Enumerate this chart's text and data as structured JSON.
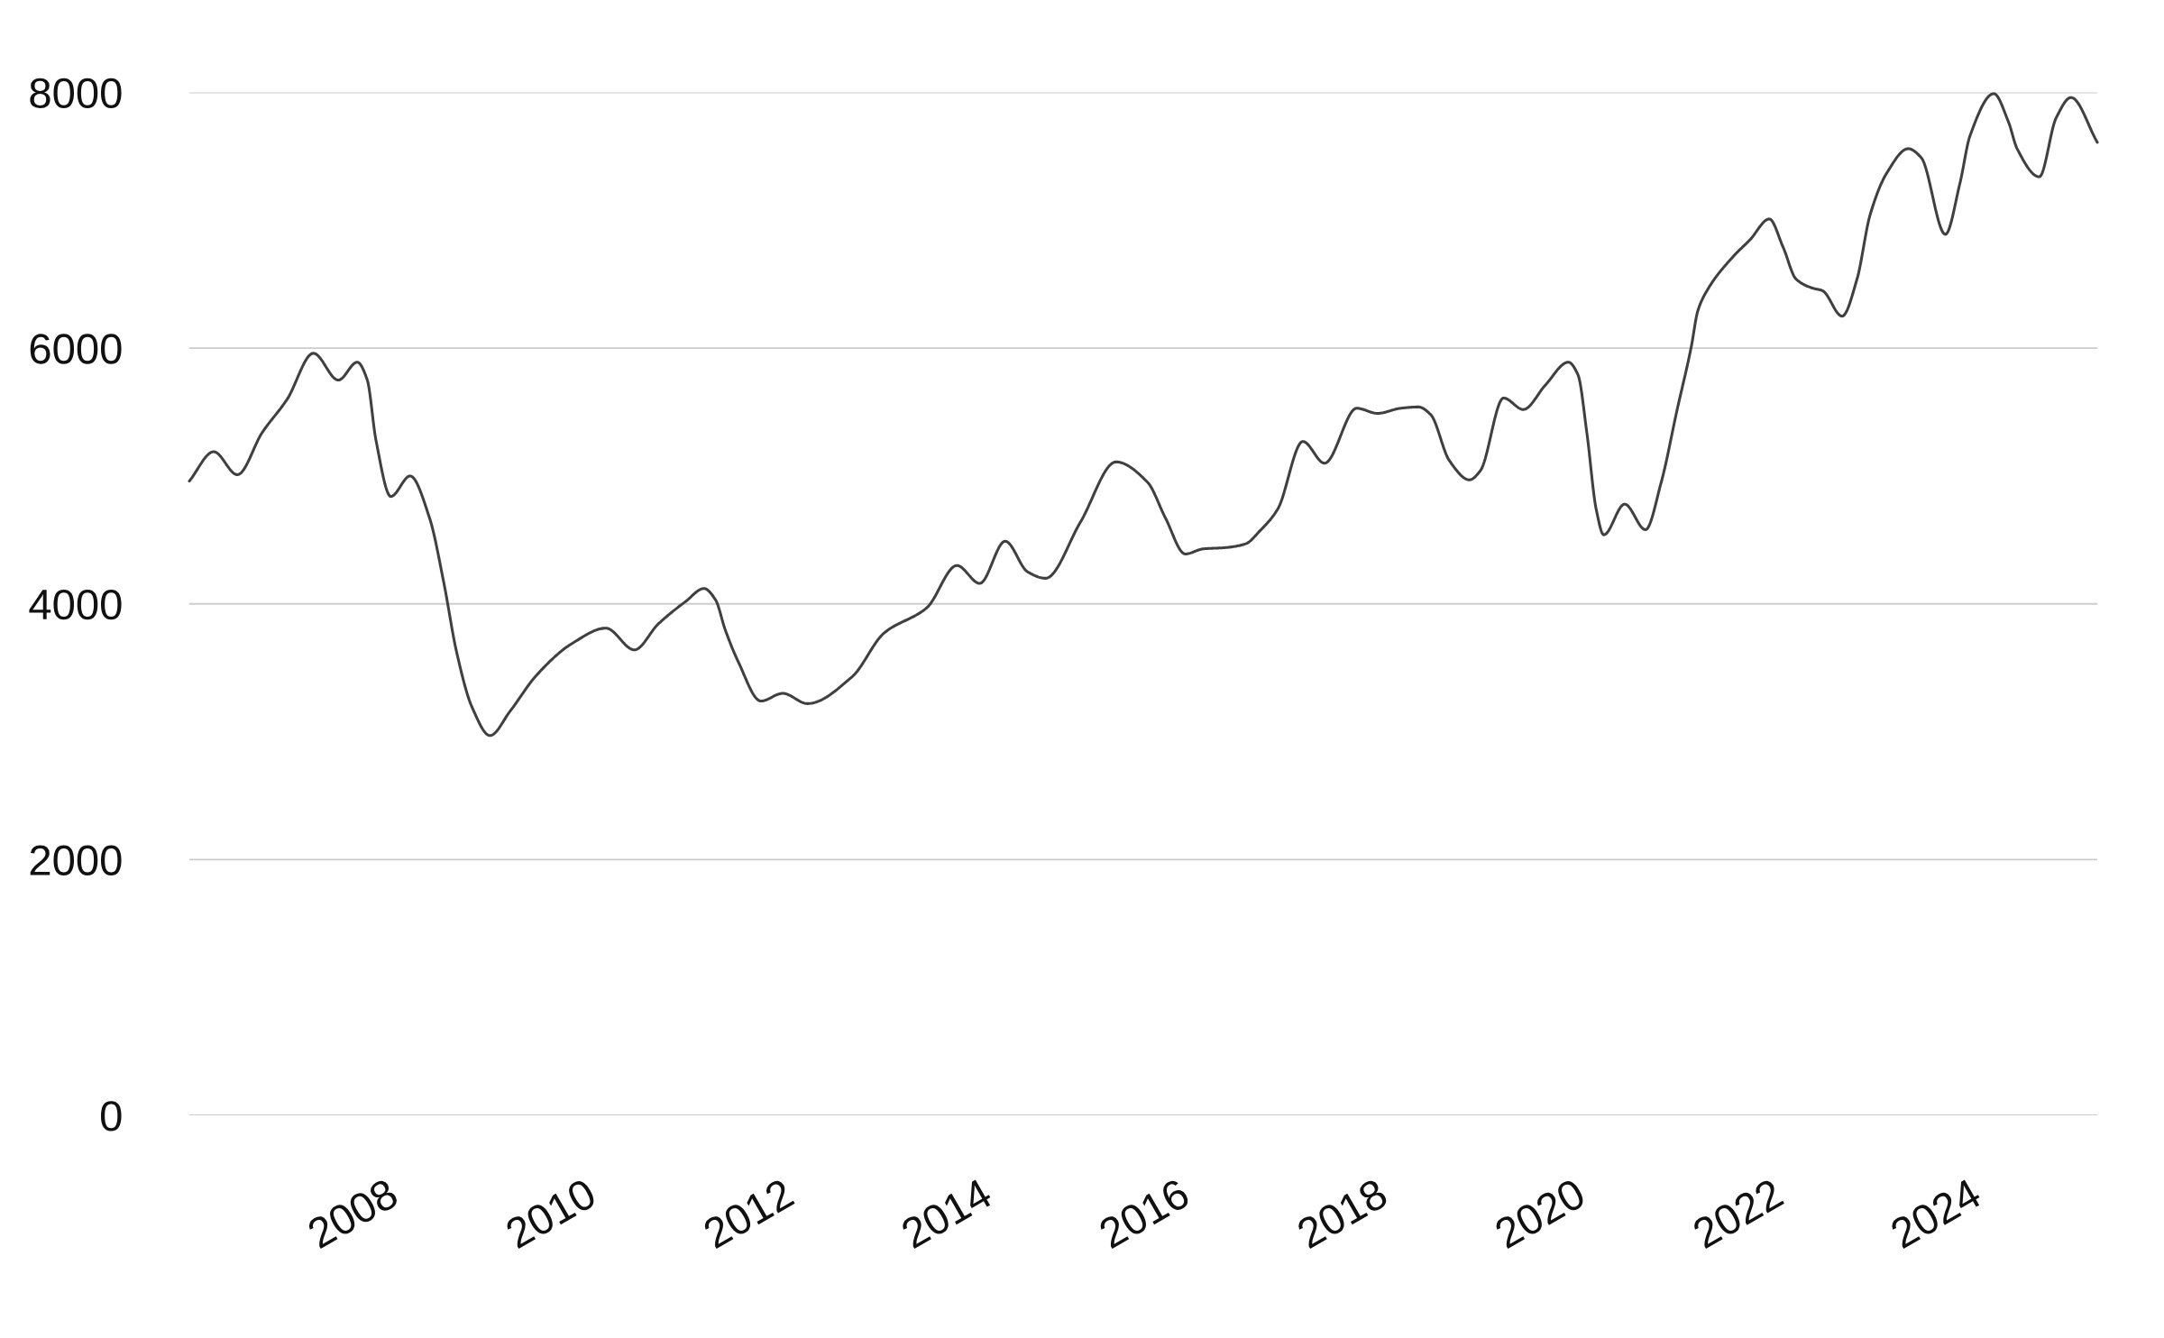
{
  "chart_data": {
    "type": "line",
    "x": [
      "2005-12-01",
      "2006-03-01",
      "2006-05-27",
      "2006-08-27",
      "2006-11-27",
      "2007-03-04",
      "2007-06-04",
      "2007-08-13",
      "2007-09-19",
      "2007-10-21",
      "2007-12-15",
      "2008-02-24",
      "2008-05-06",
      "2008-06-28",
      "2008-08-13",
      "2008-10-10",
      "2008-12-15",
      "2009-02-27",
      "2009-06-04",
      "2009-10-14",
      "2010-02-16",
      "2010-06-01",
      "2010-08-27",
      "2010-12-08",
      "2011-02-13",
      "2011-03-28",
      "2011-05-02",
      "2011-06-19",
      "2011-09-11",
      "2011-12-01",
      "2012-03-01",
      "2012-08-13",
      "2012-12-08",
      "2013-05-16",
      "2013-09-04",
      "2013-11-27",
      "2014-03-01",
      "2014-05-23",
      "2014-07-28",
      "2014-12-04",
      "2015-04-14",
      "2015-08-09",
      "2015-10-14",
      "2015-12-26",
      "2016-03-01",
      "2016-05-23",
      "2016-08-05",
      "2016-09-26",
      "2016-12-01",
      "2017-03-04",
      "2017-05-23",
      "2017-09-19",
      "2017-12-04",
      "2018-03-01",
      "2018-05-05",
      "2018-06-19",
      "2018-08-27",
      "2018-11-09",
      "2018-12-19",
      "2019-03-15",
      "2019-05-27",
      "2019-08-16",
      "2019-11-09",
      "2019-12-15",
      "2020-01-17",
      "2020-02-20",
      "2020-03-19",
      "2020-06-04",
      "2020-08-20",
      "2020-10-17",
      "2020-12-15",
      "2021-02-05",
      "2021-03-01",
      "2021-04-07",
      "2021-07-07",
      "2021-09-11",
      "2021-11-20",
      "2022-01-10",
      "2022-02-27",
      "2022-04-28",
      "2022-06-04",
      "2022-08-16",
      "2022-10-10",
      "2022-11-27",
      "2023-01-28",
      "2023-04-17",
      "2023-06-04",
      "2023-09-01",
      "2023-10-25",
      "2023-12-01",
      "2024-02-27",
      "2024-04-21",
      "2024-05-23",
      "2024-08-13",
      "2024-10-14",
      "2024-12-08",
      "2025-03-15"
    ],
    "series": [
      {
        "color": "#404040",
        "values": [
          4960,
          5190,
          5010,
          5340,
          5600,
          5960,
          5750,
          5890,
          5750,
          5280,
          4840,
          5000,
          4670,
          4160,
          3630,
          3190,
          2970,
          3160,
          3440,
          3690,
          3810,
          3640,
          3840,
          4020,
          4120,
          4030,
          3800,
          3550,
          3240,
          3300,
          3220,
          3430,
          3770,
          3970,
          4300,
          4160,
          4490,
          4250,
          4200,
          4640,
          5110,
          4950,
          4670,
          4390,
          4430,
          4440,
          4470,
          4570,
          4740,
          5270,
          5100,
          5530,
          5490,
          5530,
          5540,
          5480,
          5120,
          4970,
          5040,
          5610,
          5520,
          5710,
          5890,
          5790,
          5330,
          4740,
          4540,
          4780,
          4580,
          4950,
          5520,
          6010,
          6290,
          6460,
          6710,
          6850,
          7010,
          6790,
          6540,
          6470,
          6450,
          6250,
          6540,
          7040,
          7370,
          7560,
          7490,
          6890,
          7290,
          7660,
          7990,
          7770,
          7560,
          7340,
          7800,
          7960,
          7610
        ]
      }
    ],
    "xlim": [
      "2005-12-01",
      "2025-03-15"
    ],
    "xticks": [
      "2008",
      "2010",
      "2012",
      "2014",
      "2016",
      "2018",
      "2020",
      "2022",
      "2024"
    ],
    "ylim": [
      0,
      8000
    ],
    "yticks": [
      0,
      2000,
      4000,
      6000,
      8000
    ],
    "grid": "y",
    "line_style": "solid"
  }
}
